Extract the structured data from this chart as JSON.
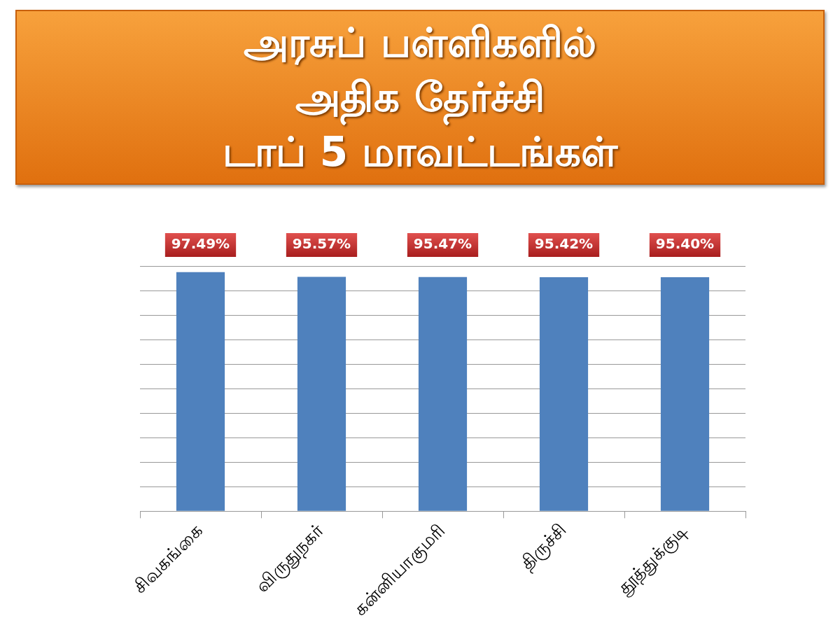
{
  "chart_data": {
    "type": "bar",
    "title": "அரசுப் பள்ளிகளில்\nஅதிக தேர்ச்சி\nடாப் 5 மாவட்டங்கள்",
    "categories": [
      "சிவகங்கை",
      "விருதுநகர்",
      "கன்னியாகுமரி",
      "திருச்சி",
      "தூத்துக்குடி"
    ],
    "values": [
      97.49,
      95.57,
      95.47,
      95.42,
      95.4
    ],
    "value_labels": [
      "97.49%",
      "95.57%",
      "95.47%",
      "95.42%",
      "95.40%"
    ],
    "color": "#4f81bd",
    "ylim": [
      0,
      100
    ],
    "yticks": [
      {
        "value": 0,
        "label": null
      },
      {
        "value": 10,
        "label": null
      },
      {
        "value": 20,
        "label": null
      },
      {
        "value": 30,
        "label": null
      },
      {
        "value": 40,
        "label": null
      },
      {
        "value": 50,
        "label": null
      },
      {
        "value": 60,
        "label": null
      },
      {
        "value": 70,
        "label": null
      },
      {
        "value": 80,
        "label": null
      },
      {
        "value": 90,
        "label": null
      },
      {
        "value": 100,
        "label": null
      }
    ],
    "tick_labels": "x",
    "grid": "y",
    "legend": false
  }
}
